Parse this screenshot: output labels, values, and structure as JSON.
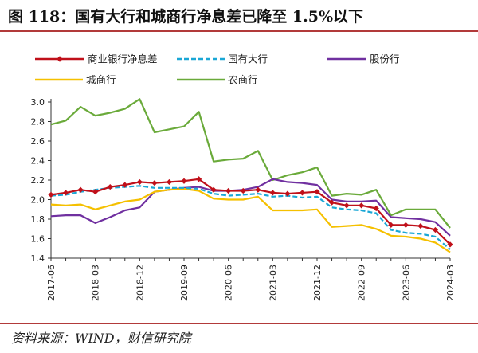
{
  "title": "图 118：国有大行和城商行净息差已降至 1.5%以下",
  "source": "资料来源：WIND，财信研究院",
  "chart_data": {
    "type": "line",
    "title": "图 118：国有大行和城商行净息差已降至 1.5%以下",
    "xlabel": "",
    "ylabel": "",
    "ylim": [
      1.4,
      3.0
    ],
    "y_ticks": [
      "1.4",
      "1.6",
      "1.8",
      "2.0",
      "2.2",
      "2.4",
      "2.6",
      "2.8",
      "3.0"
    ],
    "x_tick_labels": [
      "2017-06",
      "2018-03",
      "2018-12",
      "2019-09",
      "2020-06",
      "2021-03",
      "2021-12",
      "2022-09",
      "2023-06",
      "2024-03"
    ],
    "x": [
      "2017-06",
      "2017-09",
      "2017-12",
      "2018-03",
      "2018-06",
      "2018-09",
      "2018-12",
      "2019-03",
      "2019-06",
      "2019-09",
      "2019-12",
      "2020-03",
      "2020-06",
      "2020-09",
      "2020-12",
      "2021-03",
      "2021-06",
      "2021-09",
      "2021-12",
      "2022-03",
      "2022-06",
      "2022-09",
      "2022-12",
      "2023-03",
      "2023-06",
      "2023-09",
      "2023-12",
      "2024-03"
    ],
    "legend_position": "top",
    "series": [
      {
        "name": "商业银行净息差",
        "color": "#c0101a",
        "marker": "diamond",
        "dash": "solid",
        "values": [
          2.05,
          2.07,
          2.1,
          2.08,
          2.13,
          2.15,
          2.18,
          2.17,
          2.18,
          2.19,
          2.21,
          2.1,
          2.09,
          2.09,
          2.1,
          2.07,
          2.06,
          2.07,
          2.08,
          1.97,
          1.94,
          1.94,
          1.91,
          1.74,
          1.74,
          1.73,
          1.69,
          1.54
        ]
      },
      {
        "name": "国有大行",
        "color": "#1aa7d6",
        "marker": "none",
        "dash": "dashed",
        "values": [
          2.04,
          2.05,
          2.08,
          2.1,
          2.12,
          2.13,
          2.14,
          2.12,
          2.12,
          2.12,
          2.11,
          2.06,
          2.04,
          2.05,
          2.06,
          2.03,
          2.04,
          2.02,
          2.03,
          1.92,
          1.9,
          1.89,
          1.86,
          1.69,
          1.66,
          1.65,
          1.62,
          1.49
        ]
      },
      {
        "name": "股份行",
        "color": "#7030a0",
        "marker": "none",
        "dash": "solid",
        "values": [
          1.83,
          1.84,
          1.84,
          1.76,
          1.82,
          1.89,
          1.92,
          2.08,
          2.1,
          2.12,
          2.13,
          2.09,
          2.09,
          2.1,
          2.13,
          2.21,
          2.18,
          2.17,
          2.15,
          2.0,
          1.98,
          1.98,
          1.99,
          1.82,
          1.81,
          1.8,
          1.77,
          1.63
        ]
      },
      {
        "name": "城商行",
        "color": "#f5c000",
        "marker": "none",
        "dash": "solid",
        "values": [
          1.95,
          1.94,
          1.95,
          1.9,
          1.94,
          1.98,
          2.0,
          2.08,
          2.1,
          2.11,
          2.09,
          2.01,
          2.0,
          2.0,
          2.03,
          1.89,
          1.89,
          1.89,
          1.9,
          1.72,
          1.73,
          1.74,
          1.7,
          1.63,
          1.62,
          1.6,
          1.56,
          1.46
        ]
      },
      {
        "name": "农商行",
        "color": "#6aaa3a",
        "marker": "none",
        "dash": "solid",
        "values": [
          2.77,
          2.81,
          2.95,
          2.86,
          2.89,
          2.93,
          3.03,
          2.69,
          2.72,
          2.75,
          2.9,
          2.39,
          2.41,
          2.42,
          2.5,
          2.2,
          2.25,
          2.28,
          2.33,
          2.04,
          2.06,
          2.05,
          2.1,
          1.84,
          1.9,
          1.9,
          1.9,
          1.71
        ]
      }
    ]
  }
}
